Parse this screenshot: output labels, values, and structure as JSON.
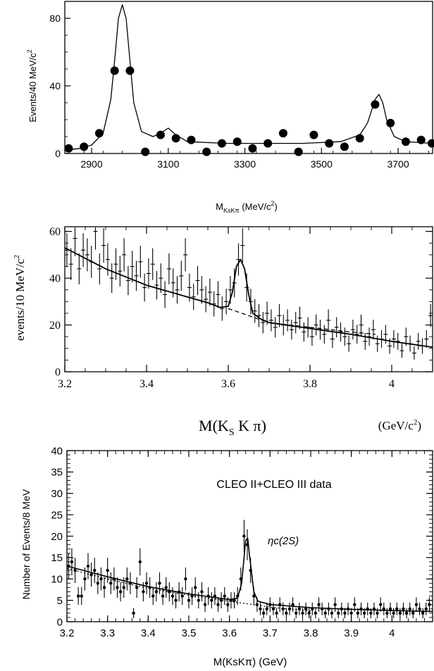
{
  "chart_data": [
    {
      "type": "scatter",
      "ylabel": "Events/40 MeV/c",
      "ylabel_sup": "2",
      "xlabel_main": "M",
      "xlabel_sub": "KsKπ",
      "xlabel_unit": " (MeV/c",
      "xlabel_unit_sup": "2",
      "xlabel_unit_close": ")",
      "xlim": [
        2830,
        3790
      ],
      "ylim": [
        0,
        90
      ],
      "xticks": [
        2900,
        3100,
        3300,
        3500,
        3700
      ],
      "yticks": [
        0,
        40,
        80
      ],
      "points": [
        [
          2840,
          3
        ],
        [
          2880,
          4
        ],
        [
          2920,
          12
        ],
        [
          2960,
          49
        ],
        [
          3000,
          49
        ],
        [
          3040,
          1
        ],
        [
          3080,
          11
        ],
        [
          3120,
          9
        ],
        [
          3160,
          8
        ],
        [
          3200,
          1
        ],
        [
          3240,
          6
        ],
        [
          3280,
          7
        ],
        [
          3320,
          3
        ],
        [
          3360,
          6
        ],
        [
          3400,
          12
        ],
        [
          3440,
          1
        ],
        [
          3480,
          11
        ],
        [
          3520,
          6
        ],
        [
          3560,
          4
        ],
        [
          3600,
          9
        ],
        [
          3640,
          29
        ],
        [
          3680,
          18
        ],
        [
          3720,
          7
        ],
        [
          3760,
          8
        ],
        [
          3800,
          6
        ]
      ],
      "fit": {
        "x": [
          2830,
          2870,
          2900,
          2930,
          2950,
          2960,
          2970,
          2980,
          2990,
          3000,
          3010,
          3030,
          3060,
          3080,
          3100,
          3120,
          3150,
          3250,
          3350,
          3450,
          3550,
          3600,
          3620,
          3640,
          3650,
          3660,
          3670,
          3690,
          3720,
          3790
        ],
        "y": [
          2,
          3,
          5,
          12,
          32,
          55,
          80,
          88,
          80,
          55,
          30,
          13,
          10,
          12,
          15,
          11,
          7,
          6,
          6,
          6,
          7,
          11,
          18,
          32,
          35,
          30,
          20,
          10,
          7,
          6
        ]
      }
    },
    {
      "type": "scatter",
      "ylabel": "events/10 MeV/c",
      "ylabel_sup": "2",
      "xlabel_main": "M(K",
      "xlabel_sub": "S",
      "xlabel_rest": " K π)",
      "xlabel_unit": "(GeV/c",
      "xlabel_unit_sup": "2",
      "xlabel_unit_close": ")",
      "xlim": [
        3.2,
        4.1
      ],
      "ylim": [
        0,
        62
      ],
      "xticks": [
        "3.2",
        "3.4",
        "3.6",
        "3.8",
        "4"
      ],
      "yticks": [
        0,
        20,
        40,
        60
      ],
      "points": [
        [
          3.205,
          52
        ],
        [
          3.215,
          46
        ],
        [
          3.225,
          57
        ],
        [
          3.235,
          44
        ],
        [
          3.245,
          52
        ],
        [
          3.255,
          50
        ],
        [
          3.265,
          47
        ],
        [
          3.275,
          60
        ],
        [
          3.285,
          44
        ],
        [
          3.295,
          54
        ],
        [
          3.305,
          48
        ],
        [
          3.315,
          40
        ],
        [
          3.325,
          46
        ],
        [
          3.335,
          43
        ],
        [
          3.345,
          50
        ],
        [
          3.355,
          39
        ],
        [
          3.365,
          45
        ],
        [
          3.375,
          41
        ],
        [
          3.385,
          47
        ],
        [
          3.395,
          36
        ],
        [
          3.405,
          42
        ],
        [
          3.415,
          46
        ],
        [
          3.425,
          37
        ],
        [
          3.435,
          40
        ],
        [
          3.445,
          33
        ],
        [
          3.455,
          44
        ],
        [
          3.465,
          38
        ],
        [
          3.475,
          35
        ],
        [
          3.485,
          41
        ],
        [
          3.495,
          50
        ],
        [
          3.505,
          36
        ],
        [
          3.515,
          32
        ],
        [
          3.525,
          39
        ],
        [
          3.535,
          35
        ],
        [
          3.545,
          31
        ],
        [
          3.555,
          34
        ],
        [
          3.565,
          29
        ],
        [
          3.575,
          33
        ],
        [
          3.585,
          27
        ],
        [
          3.595,
          30
        ],
        [
          3.605,
          35
        ],
        [
          3.615,
          38
        ],
        [
          3.625,
          48
        ],
        [
          3.635,
          54
        ],
        [
          3.645,
          36
        ],
        [
          3.655,
          30
        ],
        [
          3.665,
          26
        ],
        [
          3.675,
          24
        ],
        [
          3.685,
          21
        ],
        [
          3.695,
          25
        ],
        [
          3.705,
          22
        ],
        [
          3.715,
          19
        ],
        [
          3.725,
          24
        ],
        [
          3.735,
          20
        ],
        [
          3.745,
          22
        ],
        [
          3.755,
          18
        ],
        [
          3.765,
          21
        ],
        [
          3.775,
          23
        ],
        [
          3.785,
          17
        ],
        [
          3.795,
          19
        ],
        [
          3.805,
          15
        ],
        [
          3.815,
          20
        ],
        [
          3.825,
          18
        ],
        [
          3.835,
          16
        ],
        [
          3.845,
          22
        ],
        [
          3.855,
          14
        ],
        [
          3.865,
          19
        ],
        [
          3.875,
          17
        ],
        [
          3.885,
          15
        ],
        [
          3.895,
          12
        ],
        [
          3.905,
          18
        ],
        [
          3.915,
          16
        ],
        [
          3.925,
          20
        ],
        [
          3.935,
          13
        ],
        [
          3.945,
          15
        ],
        [
          3.955,
          18
        ],
        [
          3.965,
          12
        ],
        [
          3.975,
          14
        ],
        [
          3.985,
          16
        ],
        [
          3.995,
          11
        ],
        [
          4.005,
          14
        ],
        [
          4.015,
          13
        ],
        [
          4.025,
          9
        ],
        [
          4.035,
          15
        ],
        [
          4.045,
          12
        ],
        [
          4.055,
          8
        ],
        [
          4.065,
          13
        ],
        [
          4.075,
          11
        ],
        [
          4.085,
          14
        ],
        [
          4.095,
          24
        ]
      ],
      "fit": {
        "x": [
          3.2,
          3.3,
          3.4,
          3.5,
          3.55,
          3.58,
          3.6,
          3.61,
          3.62,
          3.63,
          3.64,
          3.65,
          3.66,
          3.68,
          3.7,
          3.8,
          3.9,
          4.0,
          4.1
        ],
        "y": [
          53,
          44,
          37,
          32,
          29.5,
          27.5,
          28,
          34,
          45,
          48,
          44,
          33,
          25,
          22.5,
          21,
          18.5,
          16,
          13,
          10.5
        ]
      },
      "background": {
        "x": [
          3.6,
          3.65,
          3.7,
          3.8,
          3.9,
          3.96
        ],
        "y": [
          27,
          24,
          21,
          19,
          17,
          16
        ]
      }
    },
    {
      "type": "scatter",
      "ylabel": "Number of Events/8 MeV",
      "annotation": "CLEO II+CLEO III data",
      "peak_label": "ηc(2S)",
      "xlabel": "M(KsKπ) (GeV)",
      "xlim": [
        3.2,
        4.1
      ],
      "ylim": [
        0,
        40
      ],
      "xticks": [
        "3.2",
        "3.3",
        "3.4",
        "3.5",
        "3.6",
        "3.7",
        "3.8",
        "3.9",
        "4"
      ],
      "yticks": [
        0,
        5,
        10,
        15,
        20,
        25,
        30,
        35,
        40
      ],
      "points": [
        [
          3.204,
          13
        ],
        [
          3.212,
          14
        ],
        [
          3.22,
          12
        ],
        [
          3.228,
          6
        ],
        [
          3.236,
          6
        ],
        [
          3.244,
          10
        ],
        [
          3.252,
          13
        ],
        [
          3.26,
          11
        ],
        [
          3.268,
          12
        ],
        [
          3.276,
          9
        ],
        [
          3.284,
          10
        ],
        [
          3.292,
          8
        ],
        [
          3.3,
          12
        ],
        [
          3.308,
          9
        ],
        [
          3.316,
          10
        ],
        [
          3.324,
          8
        ],
        [
          3.332,
          7
        ],
        [
          3.34,
          8
        ],
        [
          3.348,
          10
        ],
        [
          3.356,
          9
        ],
        [
          3.364,
          2
        ],
        [
          3.372,
          8
        ],
        [
          3.38,
          14
        ],
        [
          3.388,
          7
        ],
        [
          3.396,
          9
        ],
        [
          3.404,
          8
        ],
        [
          3.412,
          6
        ],
        [
          3.42,
          7
        ],
        [
          3.428,
          9
        ],
        [
          3.436,
          6
        ],
        [
          3.444,
          8
        ],
        [
          3.452,
          7
        ],
        [
          3.46,
          6
        ],
        [
          3.468,
          5
        ],
        [
          3.476,
          7
        ],
        [
          3.484,
          6
        ],
        [
          3.492,
          10
        ],
        [
          3.5,
          5
        ],
        [
          3.508,
          6
        ],
        [
          3.516,
          8
        ],
        [
          3.524,
          5
        ],
        [
          3.532,
          7
        ],
        [
          3.54,
          4
        ],
        [
          3.548,
          6
        ],
        [
          3.556,
          5
        ],
        [
          3.564,
          6
        ],
        [
          3.572,
          4
        ],
        [
          3.58,
          5
        ],
        [
          3.588,
          6
        ],
        [
          3.596,
          4
        ],
        [
          3.604,
          5
        ],
        [
          3.612,
          5
        ],
        [
          3.62,
          6
        ],
        [
          3.628,
          10
        ],
        [
          3.636,
          20
        ],
        [
          3.644,
          18
        ],
        [
          3.652,
          12
        ],
        [
          3.66,
          6
        ],
        [
          3.668,
          4
        ],
        [
          3.676,
          3
        ],
        [
          3.684,
          2
        ],
        [
          3.692,
          3
        ],
        [
          3.7,
          4
        ],
        [
          3.708,
          3
        ],
        [
          3.716,
          2
        ],
        [
          3.724,
          4
        ],
        [
          3.732,
          3
        ],
        [
          3.74,
          2
        ],
        [
          3.748,
          3
        ],
        [
          3.756,
          4
        ],
        [
          3.764,
          2
        ],
        [
          3.772,
          3
        ],
        [
          3.78,
          2
        ],
        [
          3.788,
          3
        ],
        [
          3.796,
          2
        ],
        [
          3.804,
          3
        ],
        [
          3.812,
          2
        ],
        [
          3.82,
          4
        ],
        [
          3.828,
          3
        ],
        [
          3.836,
          2
        ],
        [
          3.844,
          3
        ],
        [
          3.852,
          2
        ],
        [
          3.86,
          4
        ],
        [
          3.868,
          2
        ],
        [
          3.876,
          3
        ],
        [
          3.884,
          2
        ],
        [
          3.892,
          3
        ],
        [
          3.9,
          2
        ],
        [
          3.908,
          4
        ],
        [
          3.916,
          2
        ],
        [
          3.924,
          3
        ],
        [
          3.932,
          2
        ],
        [
          3.94,
          3
        ],
        [
          3.948,
          2
        ],
        [
          3.956,
          3
        ],
        [
          3.964,
          2
        ],
        [
          3.972,
          4
        ],
        [
          3.98,
          3
        ],
        [
          3.988,
          2
        ],
        [
          3.996,
          3
        ],
        [
          4.004,
          2
        ],
        [
          4.012,
          3
        ],
        [
          4.02,
          2
        ],
        [
          4.028,
          3
        ],
        [
          4.036,
          2
        ],
        [
          4.044,
          3
        ],
        [
          4.052,
          2
        ],
        [
          4.06,
          4
        ],
        [
          4.068,
          3
        ],
        [
          4.076,
          2
        ],
        [
          4.084,
          3
        ],
        [
          4.092,
          4
        ]
      ],
      "fit": {
        "x": [
          3.2,
          3.3,
          3.4,
          3.5,
          3.6,
          3.62,
          3.63,
          3.64,
          3.645,
          3.65,
          3.66,
          3.67,
          3.7,
          3.8,
          3.9,
          4.0,
          4.1
        ],
        "y": [
          13,
          10.5,
          8.2,
          6.5,
          5.2,
          5.5,
          9,
          19,
          19.5,
          15,
          7,
          4.8,
          4,
          3.3,
          2.9,
          2.6,
          2.4
        ]
      },
      "background": {
        "x": [
          3.2,
          3.3,
          3.4,
          3.5,
          3.6,
          3.7,
          3.8
        ],
        "y": [
          12.5,
          10,
          7.8,
          6.2,
          4.8,
          3.4,
          2.5
        ]
      }
    }
  ]
}
